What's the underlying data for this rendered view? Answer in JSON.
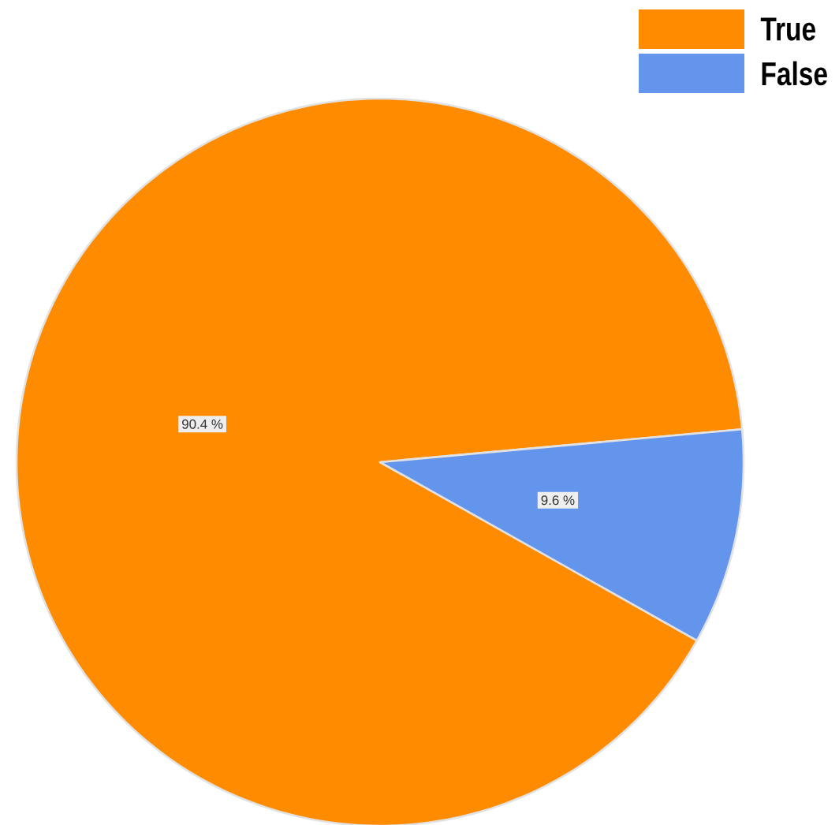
{
  "chart_data": {
    "type": "pie",
    "categories": [
      "True",
      "False"
    ],
    "values": [
      90.4,
      9.6
    ],
    "colors": [
      "#ff8c00",
      "#6495ed"
    ],
    "value_labels": [
      "90.4 %",
      "9.6 %"
    ],
    "legend": "top right"
  }
}
